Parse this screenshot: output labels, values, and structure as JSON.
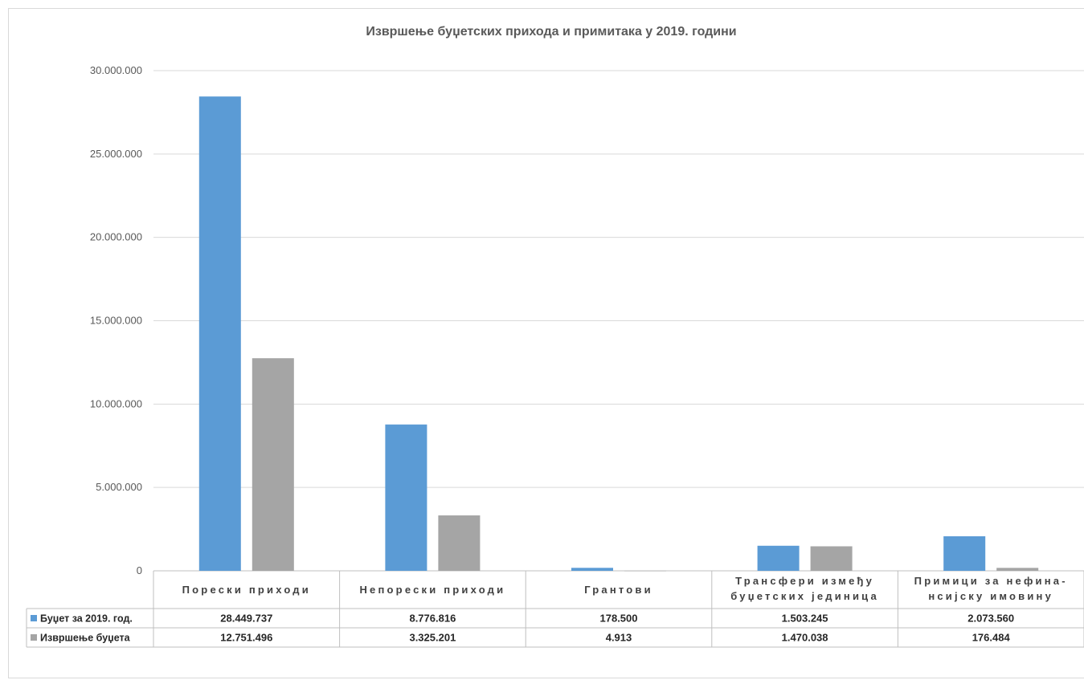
{
  "chart_data": {
    "type": "bar",
    "title": "Извршење буџетских прихода и примитака у 2019. години",
    "categories": [
      [
        "Порески приходи"
      ],
      [
        "Непорески приходи"
      ],
      [
        "Грантови"
      ],
      [
        "Трансфери између",
        "буџетских јединица"
      ],
      [
        "Примици за нефина-",
        "нсијску     имовину"
      ]
    ],
    "series": [
      {
        "name": "Буџет за 2019. год.",
        "color": "#5b9bd5",
        "values": [
          28449737,
          8776816,
          178500,
          1503245,
          2073560
        ],
        "labels": [
          "28.449.737",
          "8.776.816",
          "178.500",
          "1.503.245",
          "2.073.560"
        ]
      },
      {
        "name": "Извршење буџета",
        "color": "#a5a5a5",
        "values": [
          12751496,
          3325201,
          4913,
          1470038,
          176484
        ],
        "labels": [
          "12.751.496",
          "3.325.201",
          "4.913",
          "1.470.038",
          "176.484"
        ]
      }
    ],
    "ylim": [
      0,
      30000000
    ],
    "yticks": [
      0,
      5000000,
      10000000,
      15000000,
      20000000,
      25000000,
      30000000
    ],
    "ytick_labels": [
      "0",
      "5.000.000",
      "10.000.000",
      "15.000.000",
      "20.000.000",
      "25.000.000",
      "30.000.000"
    ],
    "grid": true,
    "legend": "data-table"
  }
}
